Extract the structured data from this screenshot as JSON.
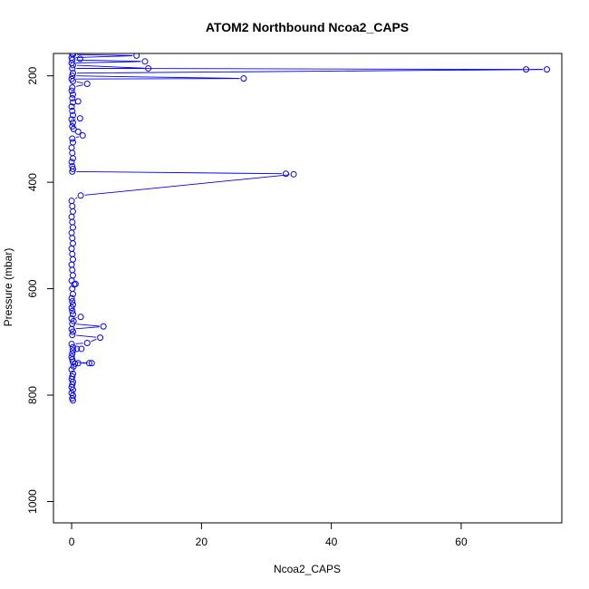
{
  "chart_data": {
    "type": "line",
    "title": "ATOM2 Northbound Ncoa2_CAPS",
    "xlabel": "Ncoa2_CAPS",
    "ylabel": "Pressure (mbar)",
    "xlim": [
      -2.8,
      75.5
    ],
    "ylim": [
      1040,
      158
    ],
    "y_reversed": true,
    "grid": false,
    "legend": "none",
    "xticks": [
      0,
      20,
      40,
      60
    ],
    "yticks": [
      200,
      400,
      600,
      800,
      1000
    ],
    "series_color": "#0000ff",
    "series": [
      {
        "points": [
          [
            0.2,
            810
          ],
          [
            0.1,
            806
          ],
          [
            0.2,
            801
          ],
          [
            0.0,
            796
          ],
          [
            0.2,
            790
          ],
          [
            0.0,
            785
          ],
          [
            0.1,
            780
          ],
          [
            0.2,
            775
          ],
          [
            0.0,
            770
          ],
          [
            0.1,
            765
          ],
          [
            0.2,
            760
          ],
          [
            0.0,
            752
          ],
          [
            0.3,
            746
          ],
          [
            0.5,
            741
          ],
          [
            1.0,
            740
          ],
          [
            2.7,
            740
          ],
          [
            3.1,
            740
          ],
          [
            0.2,
            738
          ],
          [
            0.1,
            733
          ],
          [
            0.0,
            728
          ],
          [
            0.1,
            722
          ],
          [
            0.2,
            716
          ],
          [
            0.8,
            713
          ],
          [
            1.5,
            713
          ],
          [
            0.2,
            710
          ],
          [
            0.0,
            704
          ],
          [
            2.4,
            702
          ],
          [
            4.4,
            692
          ],
          [
            0.1,
            687
          ],
          [
            0.2,
            681
          ],
          [
            0.0,
            676
          ],
          [
            4.9,
            671
          ],
          [
            0.1,
            666
          ],
          [
            0.3,
            661
          ],
          [
            0.0,
            656
          ],
          [
            1.4,
            653
          ],
          [
            0.2,
            648
          ],
          [
            0.1,
            642
          ],
          [
            0.0,
            636
          ],
          [
            0.2,
            630
          ],
          [
            0.1,
            624
          ],
          [
            0.0,
            618
          ],
          [
            0.2,
            610
          ],
          [
            0.1,
            600
          ],
          [
            0.4,
            592
          ],
          [
            0.6,
            591
          ],
          [
            0.0,
            585
          ],
          [
            0.2,
            575
          ],
          [
            0.1,
            565
          ],
          [
            0.0,
            555
          ],
          [
            0.2,
            545
          ],
          [
            0.1,
            535
          ],
          [
            0.0,
            525
          ],
          [
            0.2,
            515
          ],
          [
            0.1,
            505
          ],
          [
            0.0,
            495
          ],
          [
            0.2,
            485
          ],
          [
            0.1,
            475
          ],
          [
            0.0,
            465
          ],
          [
            0.2,
            455
          ],
          [
            0.1,
            445
          ],
          [
            0.0,
            435
          ],
          [
            1.4,
            425
          ],
          [
            34.2,
            385
          ],
          [
            33.0,
            384
          ],
          [
            0.1,
            380
          ],
          [
            0.2,
            375
          ],
          [
            0.1,
            370
          ],
          [
            0.0,
            362
          ],
          [
            0.2,
            355
          ],
          [
            0.1,
            345
          ],
          [
            0.0,
            335
          ],
          [
            0.2,
            325
          ],
          [
            0.1,
            318
          ],
          [
            1.7,
            312
          ],
          [
            1.0,
            305
          ],
          [
            0.3,
            300
          ],
          [
            0.1,
            295
          ],
          [
            0.2,
            288
          ],
          [
            0.0,
            282
          ],
          [
            1.3,
            280
          ],
          [
            0.2,
            274
          ],
          [
            0.1,
            266
          ],
          [
            0.0,
            258
          ],
          [
            0.2,
            250
          ],
          [
            1.0,
            248
          ],
          [
            0.1,
            242
          ],
          [
            0.2,
            235
          ],
          [
            0.0,
            228
          ],
          [
            0.1,
            222
          ],
          [
            2.4,
            215
          ],
          [
            0.2,
            210
          ],
          [
            0.0,
            206
          ],
          [
            26.5,
            205
          ],
          [
            0.1,
            200
          ],
          [
            0.2,
            195
          ],
          [
            73.2,
            188
          ],
          [
            70.0,
            188
          ],
          [
            0.1,
            186
          ],
          [
            11.8,
            186
          ],
          [
            0.2,
            180
          ],
          [
            0.0,
            176
          ],
          [
            11.3,
            173
          ],
          [
            0.1,
            170
          ],
          [
            1.3,
            168
          ],
          [
            0.0,
            166
          ],
          [
            10.0,
            162
          ],
          [
            0.2,
            160
          ],
          [
            0.1,
            159
          ]
        ]
      }
    ]
  }
}
